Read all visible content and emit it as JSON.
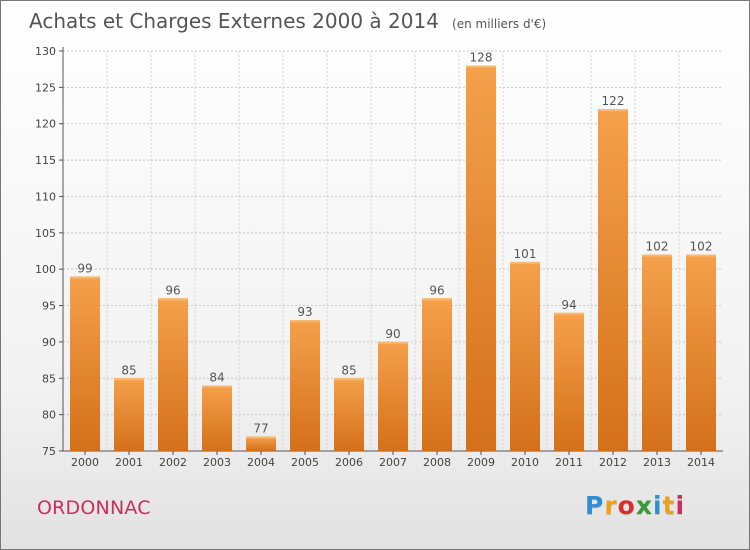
{
  "header": {
    "title": "Achats et Charges Externes 2000 à 2014",
    "unit": "(en milliers d'€)"
  },
  "footer": {
    "town": "ORDONNAC",
    "logo_letters": [
      "P",
      "r",
      "o",
      "x",
      "i",
      "t",
      "i"
    ]
  },
  "colors": {
    "bar_top": "#f5a04a",
    "bar_bottom": "#d4701b",
    "town": "#cc2d5f"
  },
  "chart_data": {
    "type": "bar",
    "title": "Achats et Charges Externes 2000 à 2014",
    "subtitle": "(en milliers d'€)",
    "xlabel": "",
    "ylabel": "",
    "categories": [
      "2000",
      "2001",
      "2002",
      "2003",
      "2004",
      "2005",
      "2006",
      "2007",
      "2008",
      "2009",
      "2010",
      "2011",
      "2012",
      "2013",
      "2014"
    ],
    "values": [
      99,
      85,
      96,
      84,
      77,
      93,
      85,
      90,
      96,
      128,
      101,
      94,
      122,
      102,
      102
    ],
    "ylim": [
      75,
      130
    ],
    "yticks": [
      75,
      80,
      85,
      90,
      95,
      100,
      105,
      110,
      115,
      120,
      125,
      130
    ],
    "grid": true,
    "legend": "none"
  }
}
